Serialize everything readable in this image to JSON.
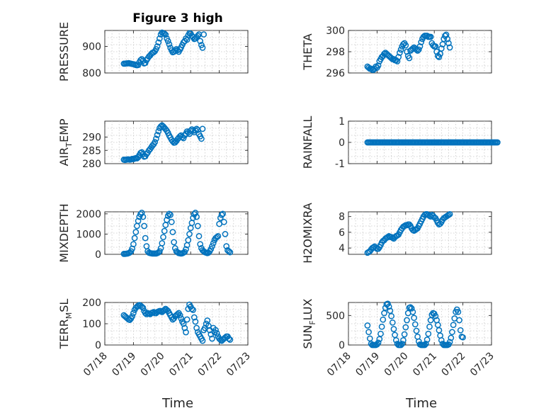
{
  "figure": {
    "title": "Figure 3 high",
    "xlabel": "Time",
    "date_ticks": [
      "07/18",
      "07/19",
      "07/20",
      "07/21",
      "07/22",
      "07/23"
    ],
    "marker_color": "#0072BD"
  },
  "chart_data": [
    {
      "type": "scatter",
      "name": "PRESSURE",
      "ylabel": "PRESSURE",
      "ylabel_sub": "",
      "ylim": [
        800,
        960
      ],
      "yticks": [
        800,
        900
      ],
      "xlim": [
        "07/18",
        "07/23"
      ],
      "x_start": "07/18 16:00",
      "x_step_hours": 1,
      "values": [
        835,
        835,
        836,
        836,
        837,
        836,
        835,
        834,
        833,
        832,
        830,
        829,
        830,
        840,
        848,
        852,
        846,
        836,
        838,
        848,
        855,
        862,
        866,
        872,
        876,
        878,
        882,
        890,
        900,
        915,
        930,
        945,
        952,
        950,
        948,
        944,
        930,
        920,
        908,
        895,
        885,
        878,
        880,
        884,
        890,
        886,
        880,
        888,
        896,
        906,
        915,
        920,
        930,
        925,
        942,
        950,
        948,
        940,
        935,
        928,
        930,
        935,
        940,
        945,
        920,
        905,
        895,
        945
      ]
    },
    {
      "type": "scatter",
      "name": "THETA",
      "ylabel": "THETA",
      "ylabel_sub": "",
      "ylim": [
        296,
        300
      ],
      "yticks": [
        296,
        298,
        300
      ],
      "xlim": [
        "07/18",
        "07/23"
      ],
      "x_start": "07/18 16:00",
      "x_step_hours": 1,
      "values": [
        296.6,
        296.5,
        296.4,
        296.4,
        296.3,
        296.3,
        296.4,
        296.6,
        296.5,
        296.7,
        297.1,
        297.3,
        297.5,
        297.6,
        297.8,
        297.9,
        297.8,
        297.7,
        297.6,
        297.5,
        297.4,
        297.3,
        297.3,
        297.2,
        297.2,
        297.1,
        297.5,
        297.9,
        298.2,
        298.5,
        298.7,
        298.8,
        298.6,
        298.0,
        297.6,
        297.4,
        298.1,
        298.2,
        298.3,
        298.4,
        298.3,
        298.2,
        298.1,
        298.2,
        298.5,
        298.9,
        299.2,
        299.4,
        299.5,
        299.5,
        299.5,
        299.4,
        299.4,
        299.4,
        298.8,
        298.6,
        298.5,
        298.5,
        298.0,
        297.6,
        297.5,
        297.8,
        298.3,
        298.7,
        299.2,
        299.5,
        299.6,
        299.2,
        298.8,
        298.4
      ]
    },
    {
      "type": "scatter",
      "name": "AIR_TEMP",
      "ylabel": "AIR",
      "ylabel_sub": "T",
      "ylabel_rest": "EMP",
      "ylim": [
        280,
        296
      ],
      "yticks": [
        280,
        285,
        290
      ],
      "xlim": [
        "07/18",
        "07/23"
      ],
      "x_start": "07/18 16:00",
      "x_step_hours": 1,
      "values": [
        281.5,
        281.4,
        281.5,
        281.6,
        281.6,
        281.5,
        281.6,
        281.8,
        281.7,
        281.9,
        282.1,
        282.0,
        282.4,
        283.2,
        284.0,
        284.3,
        283.6,
        282.6,
        282.8,
        283.6,
        284.2,
        285.0,
        285.5,
        286.2,
        286.8,
        287.3,
        288.1,
        289.4,
        290.8,
        292.2,
        293.4,
        294.0,
        294.4,
        294.0,
        293.5,
        293.0,
        292.4,
        291.6,
        290.6,
        289.8,
        289.0,
        288.4,
        287.9,
        288.0,
        288.5,
        289.2,
        289.7,
        290.3,
        290.6,
        290.0,
        289.6,
        290.6,
        291.3,
        292.1,
        291.7,
        291.2,
        292.4,
        292.9,
        292.4,
        291.8,
        292.5,
        293.1,
        292.7,
        291.1,
        290.3,
        289.4,
        293.1
      ]
    },
    {
      "type": "scatter",
      "name": "RAINFALL",
      "ylabel": "RAINFALL",
      "ylabel_sub": "",
      "ylim": [
        -1,
        1
      ],
      "yticks": [
        -1,
        0,
        1
      ],
      "xlim": [
        "07/18",
        "07/23"
      ],
      "x_start": "07/18 16:00",
      "x_step_hours": 1,
      "n": 110,
      "constant_value": 0
    },
    {
      "type": "scatter",
      "name": "MIXDEPTH",
      "ylabel": "MIXDEPTH",
      "ylabel_sub": "",
      "ylim": [
        0,
        2100
      ],
      "yticks": [
        0,
        1000,
        2000
      ],
      "xlim": [
        "07/18",
        "07/23"
      ],
      "x_start": "07/18 16:00",
      "x_step_hours": 1,
      "values": [
        20,
        20,
        30,
        40,
        60,
        90,
        150,
        280,
        500,
        800,
        1100,
        1400,
        1650,
        1850,
        1980,
        2050,
        1850,
        1400,
        800,
        400,
        150,
        80,
        60,
        50,
        40,
        40,
        40,
        40,
        60,
        90,
        150,
        300,
        550,
        850,
        1150,
        1450,
        1700,
        1900,
        2000,
        1950,
        1600,
        1100,
        600,
        300,
        150,
        100,
        60,
        50,
        40,
        50,
        80,
        120,
        250,
        450,
        700,
        1000,
        1300,
        1550,
        1800,
        1980,
        2050,
        1850,
        1400,
        900,
        500,
        300,
        200,
        150,
        100,
        80,
        60,
        80,
        150,
        260,
        400,
        550,
        700,
        800,
        850,
        900,
        1500,
        1800,
        1950,
        2000,
        1600,
        1000,
        400,
        200,
        150,
        100
      ]
    },
    {
      "type": "scatter",
      "name": "H2OMIXRA",
      "ylabel": "H2OMIXRA",
      "ylabel_sub": "",
      "ylim": [
        3.2,
        8.6
      ],
      "yticks": [
        4,
        6,
        8
      ],
      "xlim": [
        "07/18",
        "07/23"
      ],
      "x_start": "07/18 16:00",
      "x_step_hours": 1,
      "values": [
        3.4,
        3.5,
        3.6,
        3.8,
        4.0,
        4.1,
        4.2,
        4.0,
        3.9,
        3.9,
        4.1,
        4.4,
        4.7,
        4.9,
        5.0,
        5.2,
        5.3,
        5.4,
        5.5,
        5.4,
        5.4,
        5.3,
        5.2,
        5.4,
        5.5,
        5.6,
        5.7,
        6.0,
        6.3,
        6.5,
        6.7,
        6.8,
        6.9,
        6.9,
        7.0,
        7.0,
        6.8,
        6.5,
        6.3,
        6.2,
        6.3,
        6.4,
        6.5,
        6.8,
        7.1,
        7.4,
        7.7,
        8.0,
        8.2,
        8.3,
        8.3,
        8.2,
        8.1,
        8.0,
        8.2,
        8.1,
        7.9,
        7.8,
        7.5,
        7.2,
        7.0,
        7.1,
        7.3,
        7.6,
        7.8,
        7.9,
        8.0,
        8.1,
        8.2,
        8.3
      ]
    },
    {
      "type": "scatter",
      "name": "TERR_MSL",
      "ylabel": "TERR",
      "ylabel_sub": "M",
      "ylabel_rest": "SL",
      "ylim": [
        0,
        200
      ],
      "yticks": [
        0,
        100,
        200
      ],
      "xlim": [
        "07/18",
        "07/23"
      ],
      "x_start": "07/18 16:00",
      "x_step_hours": 1,
      "values": [
        140,
        135,
        130,
        125,
        120,
        118,
        125,
        135,
        150,
        165,
        175,
        180,
        185,
        188,
        185,
        180,
        175,
        160,
        150,
        145,
        150,
        148,
        145,
        150,
        152,
        155,
        150,
        150,
        155,
        158,
        160,
        160,
        155,
        160,
        165,
        170,
        165,
        160,
        150,
        140,
        130,
        120,
        125,
        135,
        140,
        145,
        150,
        140,
        125,
        110,
        100,
        80,
        60,
        120,
        170,
        190,
        180,
        170,
        165,
        130,
        110,
        80,
        60,
        50,
        40,
        30,
        20,
        70,
        80,
        100,
        115,
        90,
        70,
        50,
        30,
        80,
        60,
        70,
        55,
        40,
        30,
        25,
        20,
        25,
        30,
        35,
        40,
        40,
        30,
        25
      ]
    },
    {
      "type": "scatter",
      "name": "SUN_FLUX",
      "ylabel": "SUN",
      "ylabel_sub": "F",
      "ylabel_rest": "LUX",
      "ylim": [
        0,
        720
      ],
      "yticks": [
        0,
        500
      ],
      "xlim": [
        "07/18",
        "07/23"
      ],
      "x_start": "07/18 16:00",
      "x_step_hours": 1,
      "values": [
        330,
        220,
        110,
        20,
        0,
        0,
        0,
        0,
        10,
        40,
        100,
        190,
        310,
        430,
        540,
        630,
        690,
        700,
        650,
        580,
        490,
        380,
        270,
        170,
        80,
        20,
        0,
        0,
        0,
        20,
        80,
        180,
        300,
        420,
        540,
        630,
        640,
        620,
        560,
        460,
        350,
        240,
        140,
        60,
        10,
        0,
        0,
        0,
        0,
        20,
        90,
        190,
        310,
        420,
        510,
        540,
        530,
        490,
        420,
        340,
        250,
        160,
        80,
        20,
        0,
        0,
        0,
        0,
        10,
        50,
        120,
        220,
        340,
        450,
        560,
        600,
        560,
        420,
        250,
        140,
        130
      ]
    }
  ]
}
